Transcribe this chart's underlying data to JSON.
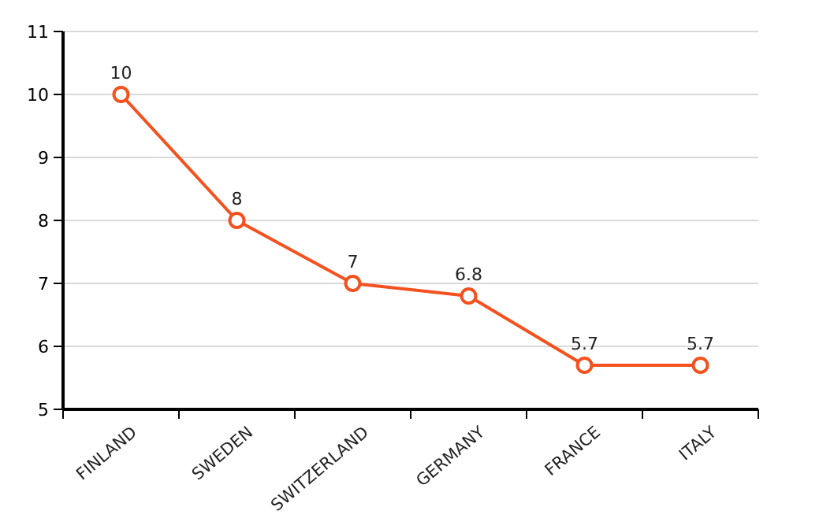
{
  "chart_data": {
    "type": "line",
    "categories": [
      "FINLAND",
      "SWEDEN",
      "SWITZERLAND",
      "GERMANY",
      "FRANCE",
      "ITALY"
    ],
    "series": [
      {
        "color": "#f4511e",
        "values": [
          10,
          8,
          7,
          6.8,
          5.7,
          5.7
        ]
      }
    ],
    "ylim": [
      5,
      11
    ],
    "yticks": [
      5,
      6,
      7,
      8,
      9,
      10,
      11
    ],
    "grid": "y",
    "marker": "circle",
    "line_style": "solid",
    "data_labels": true
  }
}
